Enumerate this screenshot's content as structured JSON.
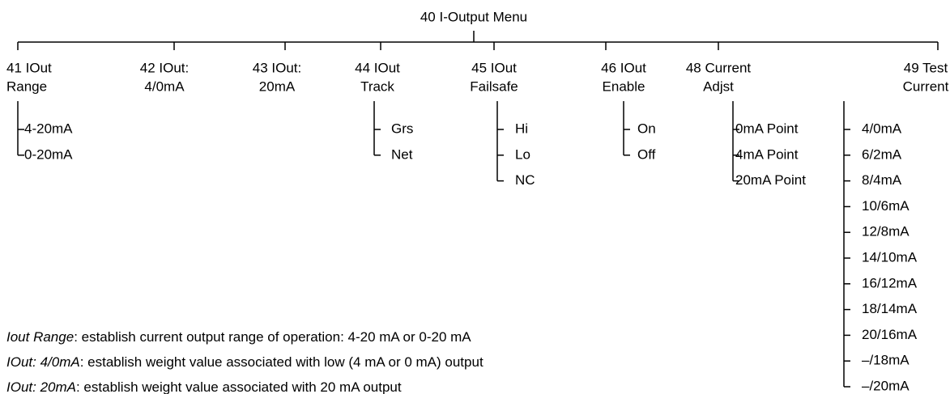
{
  "title": "40 I-Output Menu",
  "menus": [
    {
      "label": [
        "41 IOut",
        "Range"
      ],
      "items": [
        "4-20mA",
        "0-20mA"
      ]
    },
    {
      "label": [
        "42 IOut:",
        "4/0mA"
      ],
      "items": []
    },
    {
      "label": [
        "43 IOut:",
        "20mA"
      ],
      "items": []
    },
    {
      "label": [
        "44 IOut",
        "Track"
      ],
      "items": [
        "Grs",
        "Net"
      ]
    },
    {
      "label": [
        "45 IOut",
        "Failsafe"
      ],
      "items": [
        "Hi",
        "Lo",
        "NC"
      ]
    },
    {
      "label": [
        "46 IOut",
        "Enable"
      ],
      "items": [
        "On",
        "Off"
      ]
    },
    {
      "label": [
        "48 Current",
        "Adjst"
      ],
      "items": [
        "0mA Point",
        "4mA Point",
        "20mA Point"
      ]
    },
    {
      "label": [
        "49 Test",
        "Current"
      ],
      "items": [
        "4/0mA",
        "6/2mA",
        "8/4mA",
        "10/6mA",
        "12/8mA",
        "14/10mA",
        "16/12mA",
        "18/14mA",
        "20/16mA",
        "–/18mA",
        "–/20mA"
      ]
    }
  ],
  "notes": [
    {
      "term": "Iout Range",
      "text": ": establish current output range of operation: 4-20 mA or 0-20 mA"
    },
    {
      "term": "IOut: 4/0mA",
      "text": ": establish weight value associated with low (4 mA or 0 mA) output"
    },
    {
      "term": "IOut: 20mA",
      "text": ": establish weight value associated with 20 mA output"
    }
  ]
}
